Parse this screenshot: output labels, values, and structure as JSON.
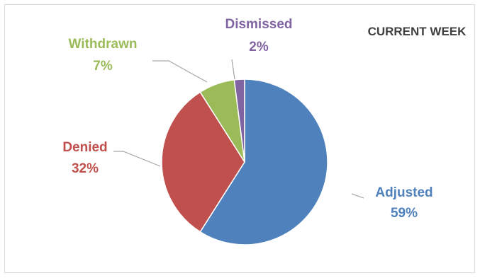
{
  "chart_data": {
    "type": "pie",
    "title": "CURRENT WEEK",
    "start_angle_deg": 0,
    "direction": "clockwise",
    "slices": [
      {
        "name": "Adjusted",
        "value": 59,
        "label": "59%",
        "color": "#4F81BD"
      },
      {
        "name": "Denied",
        "value": 32,
        "label": "32%",
        "color": "#C0504D"
      },
      {
        "name": "Withdrawn",
        "value": 7,
        "label": "7%",
        "color": "#9BBB59"
      },
      {
        "name": "Dismissed",
        "value": 2,
        "label": "2%",
        "color": "#8064A2"
      }
    ],
    "leader_line_color": "#A6A6A6",
    "legend": "none"
  }
}
